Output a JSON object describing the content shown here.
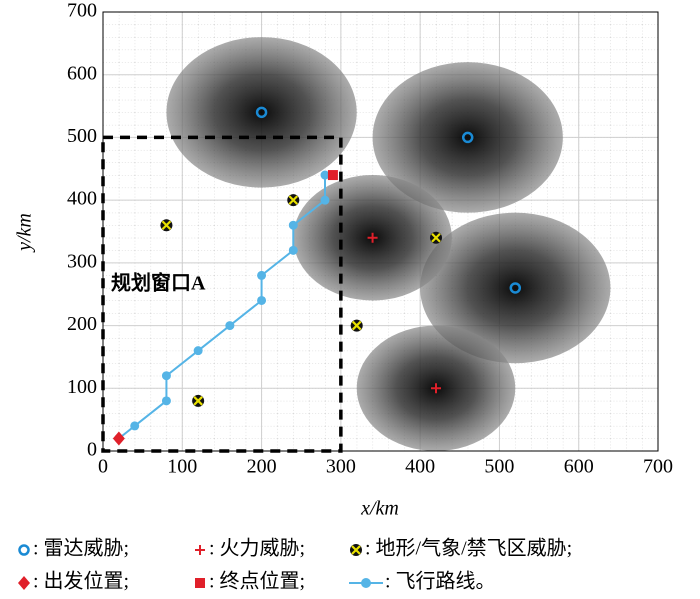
{
  "chart_data": {
    "type": "line",
    "xlabel": "x/km",
    "ylabel": "y/km",
    "xlim": [
      0,
      700
    ],
    "ylim": [
      0,
      700
    ],
    "xticks": [
      0,
      100,
      200,
      300,
      400,
      500,
      600,
      700
    ],
    "yticks": [
      0,
      100,
      200,
      300,
      400,
      500,
      600,
      700
    ],
    "grid": true,
    "series": [
      {
        "name": ": 雷达威胁;",
        "marker": "circle",
        "color": "#1a8ad4",
        "x": [
          200,
          460,
          520
        ],
        "y": [
          540,
          500,
          260
        ],
        "radius": [
          120,
          120,
          120
        ]
      },
      {
        "name": ": 火力威胁;",
        "marker": "plus",
        "color": "#e0202a",
        "x": [
          340,
          420
        ],
        "y": [
          340,
          100
        ],
        "radius": [
          100,
          100
        ]
      },
      {
        "name": ": 地形/气象/禁飞区威胁;",
        "marker": "x",
        "color": "#e8e000",
        "x": [
          80,
          240,
          420,
          320,
          120
        ],
        "y": [
          360,
          400,
          340,
          200,
          80
        ]
      },
      {
        "name": ": 出发位置;",
        "marker": "diamond",
        "color": "#e0202a",
        "x": [
          20
        ],
        "y": [
          20
        ]
      },
      {
        "name": ": 终点位置;",
        "marker": "square",
        "color": "#e0202a",
        "x": [
          290
        ],
        "y": [
          440
        ]
      },
      {
        "name": ": 飞行路线。",
        "marker": "line",
        "color": "#55b4e6",
        "x": [
          20,
          40,
          80,
          80,
          120,
          160,
          200,
          200,
          240,
          240,
          280,
          280,
          290
        ],
        "y": [
          20,
          40,
          80,
          120,
          160,
          200,
          240,
          280,
          320,
          360,
          400,
          440,
          440
        ]
      }
    ],
    "window": {
      "label": "规划窗口A",
      "x": [
        0,
        300
      ],
      "y": [
        0,
        500
      ]
    }
  }
}
